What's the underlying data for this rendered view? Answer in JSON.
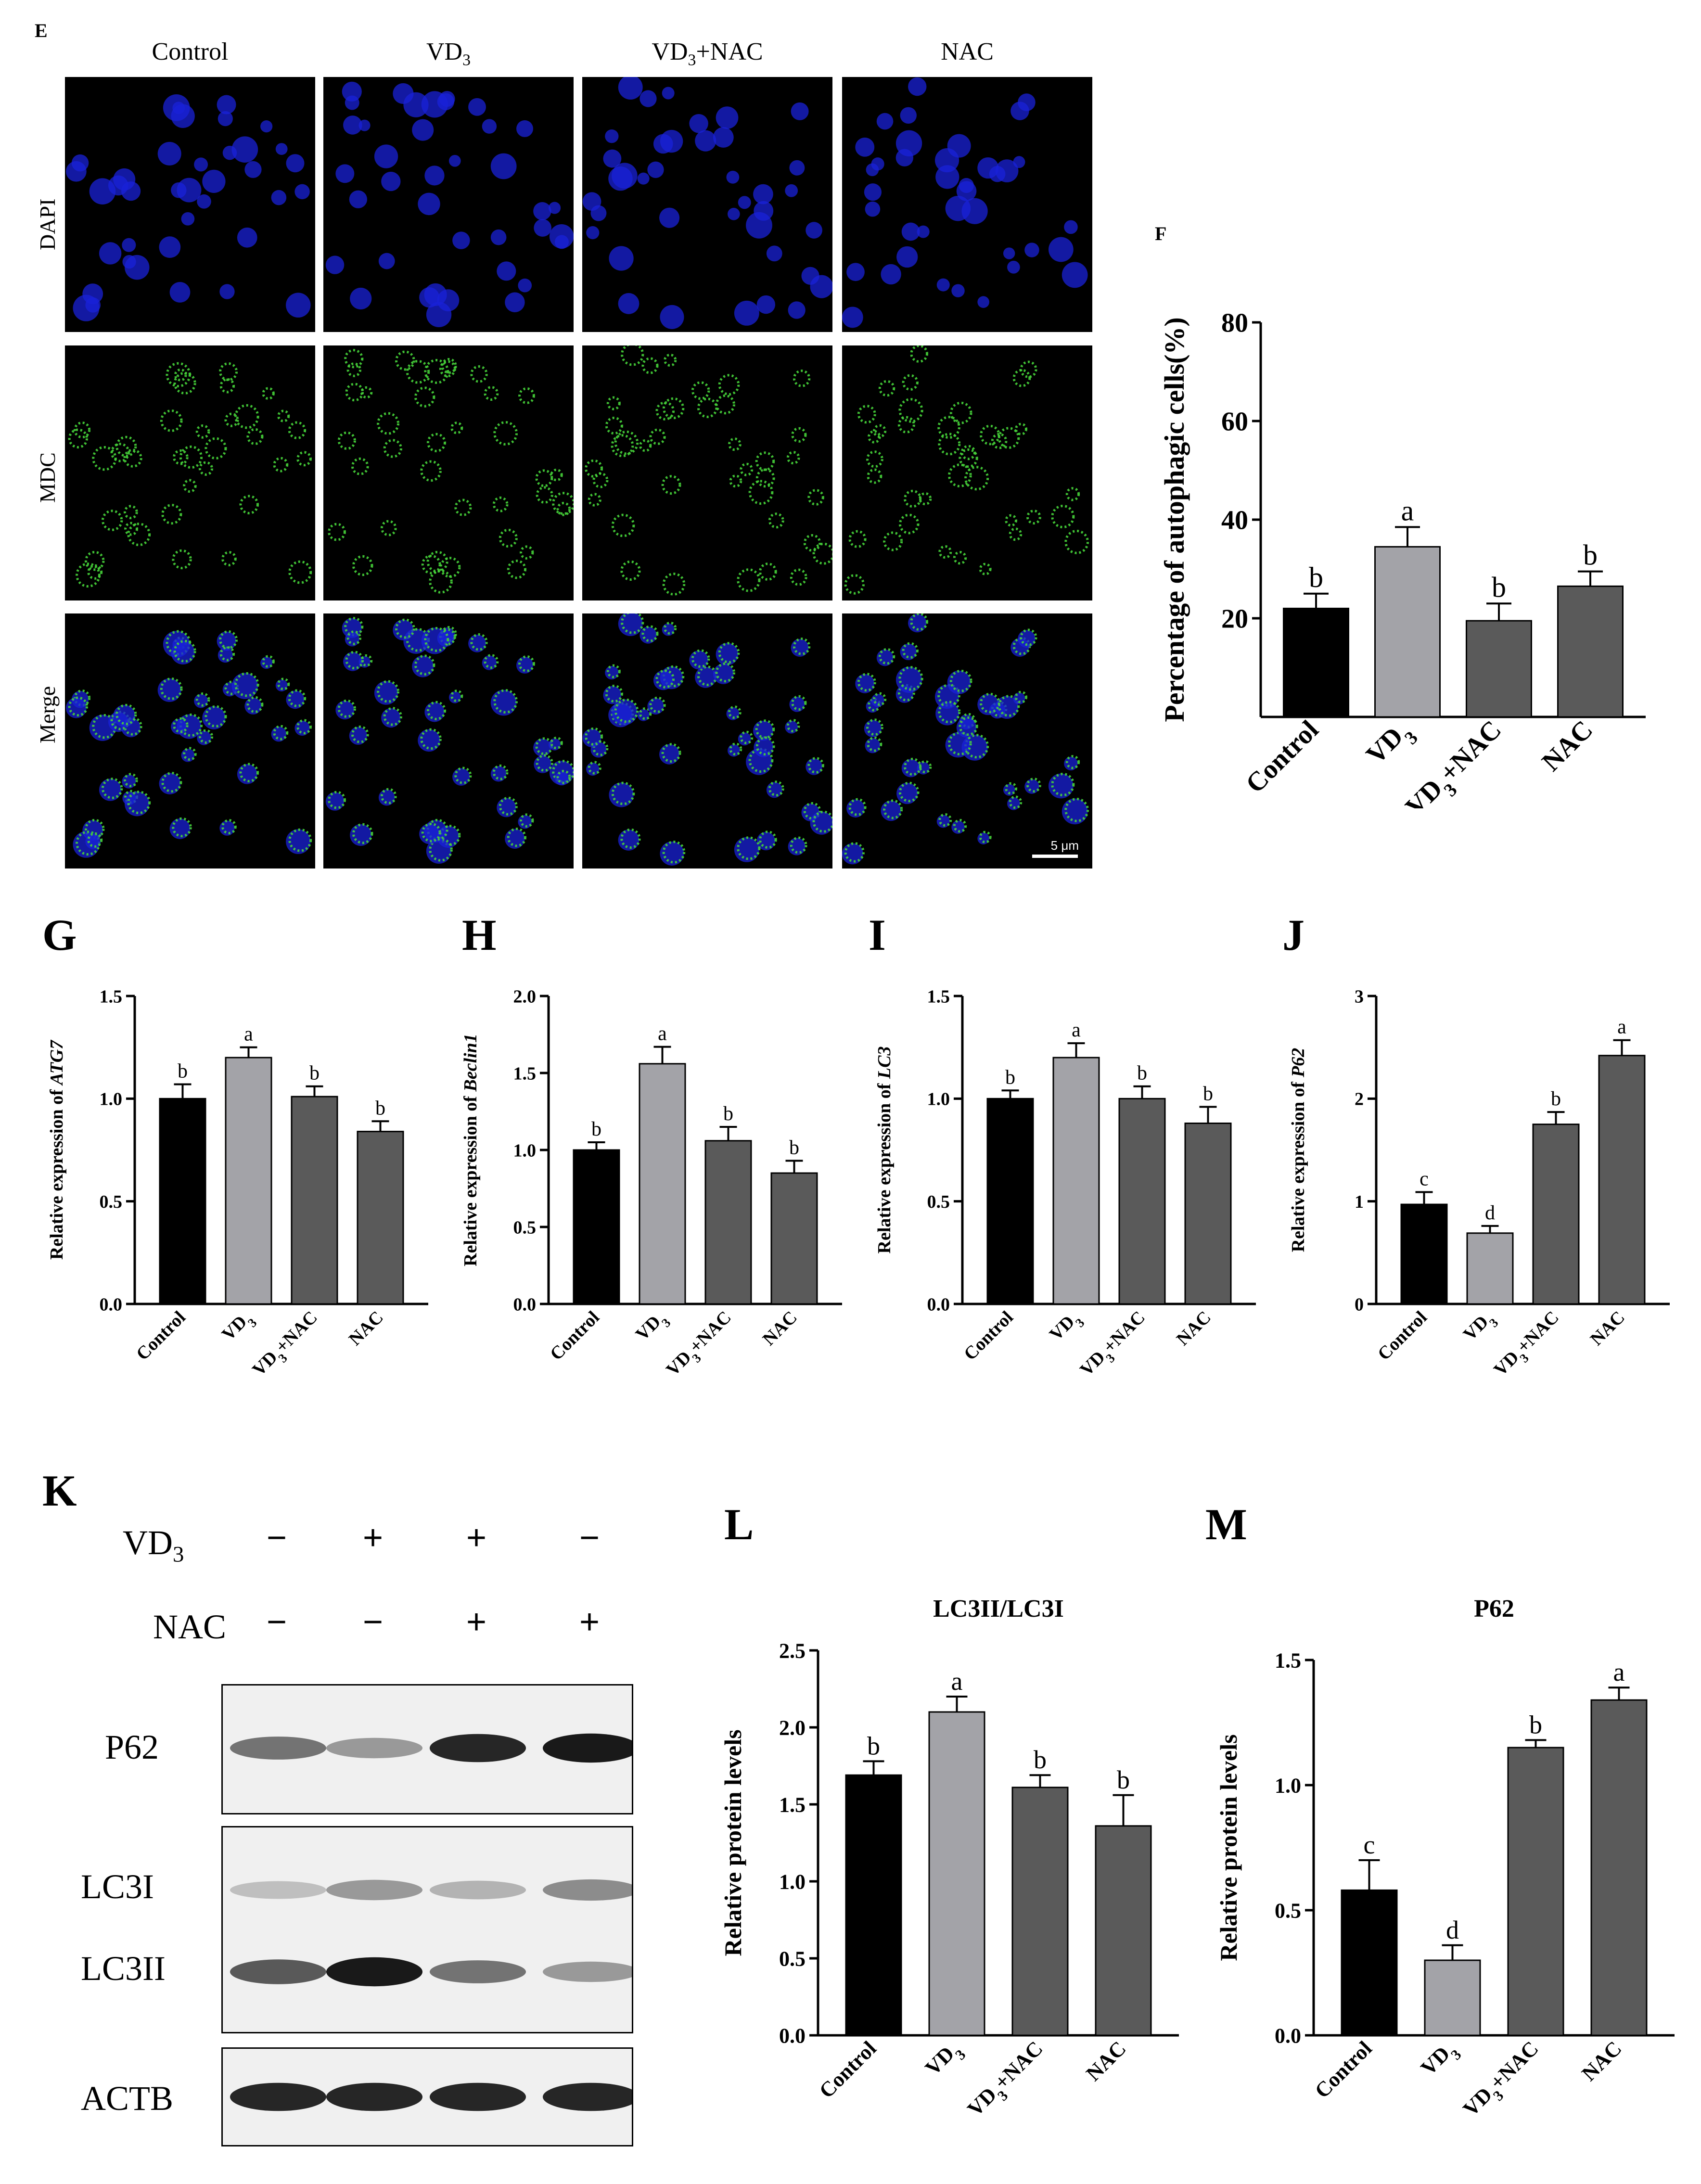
{
  "panels": {
    "E": "E",
    "F": "F",
    "G": "G",
    "H": "H",
    "I": "I",
    "J": "J",
    "K": "K",
    "L": "L",
    "M": "M"
  },
  "microscopy": {
    "columns": [
      "Control",
      "VD3",
      "VD3+NAC",
      "NAC"
    ],
    "rows": [
      "DAPI",
      "MDC",
      "Merge"
    ],
    "scale_bar": "5 μm",
    "colors": {
      "dapi": "#1a22d8",
      "mdc": "#46d33a"
    }
  },
  "blot": {
    "treatments": [
      {
        "label": "VD3",
        "signs": [
          "−",
          "+",
          "+",
          "−"
        ]
      },
      {
        "label": "NAC",
        "signs": [
          "−",
          "−",
          "+",
          "+"
        ]
      }
    ],
    "bands": [
      "P62",
      "LC3I",
      "LC3II",
      "ACTB"
    ],
    "intensities": {
      "P62": [
        0.55,
        0.4,
        0.85,
        0.9
      ],
      "LC3I": [
        0.25,
        0.4,
        0.3,
        0.45
      ],
      "LC3II": [
        0.65,
        0.9,
        0.55,
        0.4
      ],
      "ACTB": [
        0.85,
        0.85,
        0.85,
        0.85
      ]
    }
  },
  "colors": {
    "bars": [
      "#000000",
      "#a3a3a8",
      "#5a5a5a",
      "#5a5a5a"
    ]
  },
  "chart_data": [
    {
      "id": "F",
      "type": "bar",
      "categories": [
        "Control",
        "VD3",
        "VD3+NAC",
        "NAC"
      ],
      "values": [
        22,
        34.5,
        19.5,
        26.5
      ],
      "errors": [
        3,
        4,
        3.5,
        3
      ],
      "letters": [
        "b",
        "a",
        "b",
        "b"
      ],
      "ylabel": "Percentage of autophagic cells(%)",
      "yticks": [
        20,
        40,
        60,
        80
      ],
      "ylim": [
        0,
        80
      ],
      "title": ""
    },
    {
      "id": "G",
      "type": "bar",
      "categories": [
        "Control",
        "VD3",
        "VD3+NAC",
        "NAC"
      ],
      "values": [
        1.0,
        1.2,
        1.01,
        0.84
      ],
      "errors": [
        0.07,
        0.05,
        0.05,
        0.05
      ],
      "letters": [
        "b",
        "a",
        "b",
        "b"
      ],
      "ylabel_prefix": "Relative expression of ",
      "ylabel_gene": "ATG7",
      "yticks": [
        0.0,
        0.5,
        1.0,
        1.5
      ],
      "ylim": [
        0,
        1.5
      ],
      "title": ""
    },
    {
      "id": "H",
      "type": "bar",
      "categories": [
        "Control",
        "VD3",
        "VD3+NAC",
        "NAC"
      ],
      "values": [
        1.0,
        1.56,
        1.06,
        0.85
      ],
      "errors": [
        0.05,
        0.11,
        0.09,
        0.08
      ],
      "letters": [
        "b",
        "a",
        "b",
        "b"
      ],
      "ylabel_prefix": "Relative expression of ",
      "ylabel_gene": "Beclin1",
      "yticks": [
        0.0,
        0.5,
        1.0,
        1.5,
        2.0
      ],
      "ylim": [
        0,
        2.0
      ],
      "title": ""
    },
    {
      "id": "I",
      "type": "bar",
      "categories": [
        "Control",
        "VD3",
        "VD3+NAC",
        "NAC"
      ],
      "values": [
        1.0,
        1.2,
        1.0,
        0.88
      ],
      "errors": [
        0.04,
        0.07,
        0.06,
        0.08
      ],
      "letters": [
        "b",
        "a",
        "b",
        "b"
      ],
      "ylabel_prefix": "Relative expression of ",
      "ylabel_gene": "LC3",
      "yticks": [
        0.0,
        0.5,
        1.0,
        1.5
      ],
      "ylim": [
        0,
        1.5
      ],
      "title": ""
    },
    {
      "id": "J",
      "type": "bar",
      "categories": [
        "Control",
        "VD3",
        "VD3+NAC",
        "NAC"
      ],
      "values": [
        0.97,
        0.69,
        1.75,
        2.42
      ],
      "errors": [
        0.12,
        0.07,
        0.12,
        0.15
      ],
      "letters": [
        "c",
        "d",
        "b",
        "a"
      ],
      "ylabel_prefix": "Relative expression of ",
      "ylabel_gene": "P62",
      "yticks": [
        0,
        1,
        2,
        3
      ],
      "ylim": [
        0,
        3
      ],
      "title": ""
    },
    {
      "id": "L",
      "type": "bar",
      "categories": [
        "Control",
        "VD3",
        "VD3+NAC",
        "NAC"
      ],
      "values": [
        1.69,
        2.1,
        1.61,
        1.36
      ],
      "errors": [
        0.09,
        0.1,
        0.08,
        0.2
      ],
      "letters": [
        "b",
        "a",
        "b",
        "b"
      ],
      "ylabel": "Relative protein levels",
      "yticks": [
        0.0,
        0.5,
        1.0,
        1.5,
        2.0,
        2.5
      ],
      "ylim": [
        0,
        2.5
      ],
      "title": "LC3II/LC3I"
    },
    {
      "id": "M",
      "type": "bar",
      "categories": [
        "Control",
        "VD3",
        "VD3+NAC",
        "NAC"
      ],
      "values": [
        0.58,
        0.3,
        1.15,
        1.34
      ],
      "errors": [
        0.12,
        0.06,
        0.03,
        0.05
      ],
      "letters": [
        "c",
        "d",
        "b",
        "a"
      ],
      "ylabel": "Relative protein levels",
      "yticks": [
        0.0,
        0.5,
        1.0,
        1.5
      ],
      "ylim": [
        0,
        1.5
      ],
      "title": "P62"
    }
  ]
}
